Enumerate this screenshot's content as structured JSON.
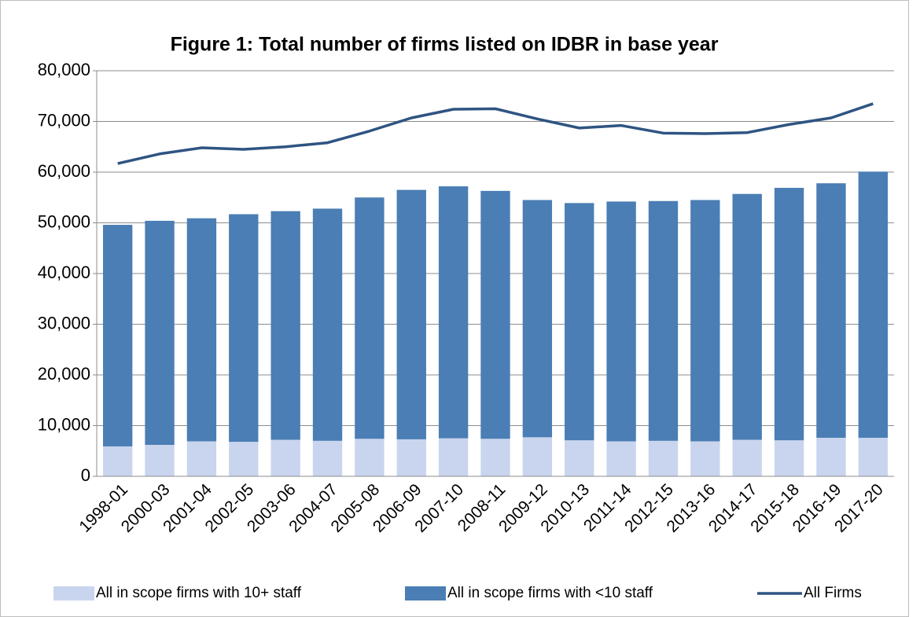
{
  "chart_data": {
    "type": "bar",
    "stacked": true,
    "title": "Figure 1: Total number of firms listed on IDBR in base year",
    "categories": [
      "1998-01",
      "2000-03",
      "2001-04",
      "2002-05",
      "2003-06",
      "2004-07",
      "2005-08",
      "2006-09",
      "2007-10",
      "2008-11",
      "2009-12",
      "2010-13",
      "2011-14",
      "2012-15",
      "2013-16",
      "2014-17",
      "2015-18",
      "2016-19",
      "2017-20"
    ],
    "series": [
      {
        "name": "All in scope firms with 10+ staff",
        "type": "bar",
        "color": "#c9d5ee",
        "values": [
          5900,
          6200,
          6900,
          6800,
          7200,
          7000,
          7400,
          7300,
          7500,
          7400,
          7700,
          7100,
          6900,
          7000,
          6900,
          7200,
          7100,
          7600,
          7600
        ]
      },
      {
        "name": "All in scope firms with <10 staff",
        "type": "bar",
        "color": "#4a7eb4",
        "values": [
          43700,
          44200,
          44000,
          44900,
          45100,
          45800,
          47600,
          49200,
          49700,
          48900,
          46800,
          46800,
          47300,
          47300,
          47600,
          48500,
          49800,
          50200,
          52500
        ]
      },
      {
        "name": "All Firms",
        "type": "line",
        "color": "#2f5482",
        "values": [
          61700,
          63600,
          64800,
          64500,
          65000,
          65800,
          68100,
          70700,
          72400,
          72500,
          70500,
          68700,
          69200,
          67700,
          67600,
          67800,
          69400,
          70700,
          73500
        ]
      }
    ],
    "ylim": [
      0,
      80000
    ],
    "yticks": [
      0,
      {
        "value": 10000,
        "label": "10,000"
      },
      {
        "value": 20000,
        "label": "20,000"
      },
      {
        "value": 30000,
        "label": "30,000"
      },
      {
        "value": 40000,
        "label": "40,000"
      },
      {
        "value": 50000,
        "label": "50,000"
      },
      {
        "value": 60000,
        "label": "60,000"
      },
      {
        "value": 70000,
        "label": "70,000"
      },
      {
        "value": 80000,
        "label": "80,000"
      }
    ],
    "grid": true,
    "legend": "bottom"
  }
}
